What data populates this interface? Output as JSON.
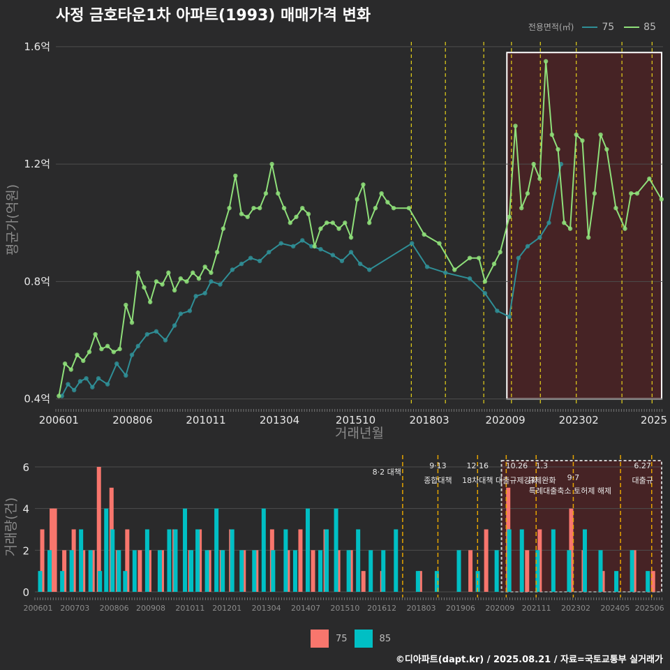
{
  "title": "사정 금호타운1차 아파트(1993) 매매가격 변화",
  "legend_top": {
    "title": "전용면적(㎡)",
    "items": [
      {
        "label": "75",
        "color": "#2f8f97"
      },
      {
        "label": "85",
        "color": "#8fe07a"
      }
    ]
  },
  "legend_bottom": {
    "items": [
      {
        "label": "75",
        "color": "#f8766d"
      },
      {
        "label": "85",
        "color": "#00bfc4"
      }
    ]
  },
  "credit": "©디아파트(dapt.kr) / 2025.08.21 / 자료=국토교통부 실거래가",
  "chart_data": [
    {
      "type": "line",
      "title": "사정 금호타운1차 아파트(1993) 매매가격 변화",
      "xlabel": "거래년월",
      "ylabel": "평균가(억원)",
      "x_tick_labels": [
        "200601",
        "200806",
        "201011",
        "201304",
        "201510",
        "201803",
        "202009",
        "202302",
        "2025"
      ],
      "y_tick_labels": [
        "0.4억",
        "0.8억",
        "1.2억",
        "1.6억"
      ],
      "ylim": [
        0.38,
        1.64
      ],
      "xlim": [
        2005.9,
        2025.85
      ],
      "grid": true,
      "legend_position": "top-right",
      "policy_lines": [
        2017.58,
        2018.7,
        2019.96,
        2020.87,
        2021.82,
        2023.0,
        2024.5,
        2025.49
      ],
      "highlight_range": {
        "x": [
          2020.72,
          2025.85
        ],
        "y": [
          0.4,
          1.58
        ]
      },
      "series": [
        {
          "name": "75",
          "color": "#2f8f97",
          "x": [
            2006.1,
            2006.3,
            2006.5,
            2006.7,
            2006.9,
            2007.1,
            2007.3,
            2007.6,
            2007.9,
            2008.2,
            2008.4,
            2008.6,
            2008.9,
            2009.2,
            2009.5,
            2009.8,
            2010.0,
            2010.3,
            2010.5,
            2010.8,
            2011.0,
            2011.3,
            2011.7,
            2012.0,
            2012.3,
            2012.6,
            2012.9,
            2013.3,
            2013.7,
            2014.0,
            2014.3,
            2014.6,
            2015.0,
            2015.3,
            2015.6,
            2015.9,
            2016.2,
            2017.6,
            2018.1,
            2018.7,
            2019.5,
            2020.0,
            2020.4,
            2020.8,
            2021.1,
            2021.4,
            2021.8,
            2022.1,
            2022.5
          ],
          "y": [
            0.41,
            0.45,
            0.43,
            0.46,
            0.47,
            0.44,
            0.47,
            0.45,
            0.52,
            0.48,
            0.55,
            0.58,
            0.62,
            0.63,
            0.6,
            0.65,
            0.69,
            0.7,
            0.75,
            0.76,
            0.8,
            0.79,
            0.84,
            0.86,
            0.88,
            0.87,
            0.9,
            0.93,
            0.92,
            0.94,
            0.92,
            0.91,
            0.89,
            0.87,
            0.9,
            0.86,
            0.84,
            0.93,
            0.85,
            0.83,
            0.81,
            0.76,
            0.7,
            0.68,
            0.88,
            0.92,
            0.95,
            1.0,
            1.2
          ]
        },
        {
          "name": "85",
          "color": "#8fe07a",
          "x": [
            2006.0,
            2006.2,
            2006.4,
            2006.6,
            2006.8,
            2007.0,
            2007.2,
            2007.4,
            2007.6,
            2007.8,
            2008.0,
            2008.2,
            2008.4,
            2008.6,
            2008.8,
            2009.0,
            2009.2,
            2009.4,
            2009.6,
            2009.8,
            2010.0,
            2010.2,
            2010.4,
            2010.6,
            2010.8,
            2011.0,
            2011.2,
            2011.4,
            2011.6,
            2011.8,
            2012.0,
            2012.2,
            2012.4,
            2012.6,
            2012.8,
            2013.0,
            2013.2,
            2013.4,
            2013.6,
            2013.8,
            2014.0,
            2014.2,
            2014.4,
            2014.6,
            2014.8,
            2015.0,
            2015.2,
            2015.4,
            2015.6,
            2015.8,
            2016.0,
            2016.2,
            2016.4,
            2016.6,
            2016.8,
            2017.0,
            2017.5,
            2018.0,
            2018.5,
            2019.0,
            2019.5,
            2019.8,
            2020.0,
            2020.3,
            2020.5,
            2020.8,
            2021.0,
            2021.2,
            2021.4,
            2021.6,
            2021.8,
            2022.0,
            2022.2,
            2022.4,
            2022.6,
            2022.8,
            2023.0,
            2023.2,
            2023.4,
            2023.6,
            2023.8,
            2024.0,
            2024.3,
            2024.6,
            2024.8,
            2025.0,
            2025.4,
            2025.8
          ],
          "y": [
            0.41,
            0.52,
            0.5,
            0.55,
            0.53,
            0.56,
            0.62,
            0.57,
            0.58,
            0.56,
            0.57,
            0.72,
            0.66,
            0.83,
            0.78,
            0.73,
            0.8,
            0.79,
            0.83,
            0.77,
            0.81,
            0.8,
            0.83,
            0.81,
            0.85,
            0.83,
            0.9,
            0.98,
            1.05,
            1.16,
            1.03,
            1.02,
            1.05,
            1.05,
            1.1,
            1.2,
            1.1,
            1.05,
            1.0,
            1.02,
            1.05,
            1.03,
            0.92,
            0.98,
            1.0,
            1.0,
            0.98,
            1.0,
            0.95,
            1.08,
            1.13,
            1.0,
            1.05,
            1.1,
            1.07,
            1.05,
            1.05,
            0.96,
            0.93,
            0.84,
            0.88,
            0.88,
            0.8,
            0.86,
            0.9,
            1.02,
            1.33,
            1.05,
            1.1,
            1.2,
            1.15,
            1.55,
            1.3,
            1.25,
            1.0,
            0.98,
            1.3,
            1.28,
            0.95,
            1.1,
            1.3,
            1.25,
            1.05,
            0.98,
            1.1,
            1.1,
            1.15,
            1.08
          ]
        }
      ]
    },
    {
      "type": "bar",
      "xlabel": "",
      "ylabel": "거래량(건)",
      "x_tick_labels": [
        "200601",
        "200703",
        "200806",
        "200908",
        "201011",
        "201201",
        "201304",
        "201407",
        "201510",
        "201612",
        "201803",
        "201906",
        "202009",
        "202111",
        "202302",
        "202405",
        "202506"
      ],
      "y_tick_labels": [
        "0",
        "2",
        "4",
        "6"
      ],
      "ylim": [
        0,
        6.3
      ],
      "xlim": [
        2005.9,
        2025.85
      ],
      "policy_labels": [
        {
          "date": "",
          "text": "8·2 대책"
        },
        {
          "date": "9·13",
          "text": "종합대책"
        },
        {
          "date": "12·16",
          "text": "18차대책"
        },
        {
          "date": "10.26",
          "text": "대출규제강화"
        },
        {
          "date": "1.3",
          "text": "규제완화"
        },
        {
          "date": "",
          "text": "9·7"
        },
        {
          "date": "",
          "text": "특례대출축소 토허제 해제"
        },
        {
          "date": "6.27",
          "text": "대출규"
        }
      ],
      "series": [
        {
          "name": "75",
          "color": "#f8766d",
          "x": [
            2006.2,
            2006.5,
            2006.6,
            2006.9,
            2007.2,
            2007.5,
            2007.8,
            2008.0,
            2008.4,
            2008.6,
            2008.9,
            2009.3,
            2009.6,
            2010.0,
            2010.4,
            2010.9,
            2011.2,
            2011.5,
            2011.9,
            2012.2,
            2012.6,
            2013.0,
            2013.5,
            2014.0,
            2014.4,
            2014.8,
            2015.2,
            2015.6,
            2016.0,
            2016.4,
            2017.0,
            2018.2,
            2019.8,
            2020.3,
            2021.0,
            2021.6,
            2022.0,
            2023.0,
            2023.4,
            2024.0,
            2025.0,
            2025.6
          ],
          "y": [
            3,
            4,
            4,
            2,
            3,
            2,
            2,
            6,
            5,
            2,
            3,
            2,
            2,
            2,
            3,
            2,
            3,
            2,
            2,
            3,
            2,
            2,
            3,
            2,
            3,
            2,
            3,
            2,
            2,
            1,
            1,
            1,
            2,
            3,
            5,
            2,
            3,
            4,
            2,
            1,
            2,
            1
          ]
        },
        {
          "name": "85",
          "color": "#00bfc4",
          "x": [
            2006.0,
            2006.3,
            2006.7,
            2007.0,
            2007.3,
            2007.6,
            2007.9,
            2008.1,
            2008.3,
            2008.5,
            2008.7,
            2009.0,
            2009.4,
            2009.8,
            2010.1,
            2010.3,
            2010.6,
            2010.8,
            2011.0,
            2011.3,
            2011.6,
            2011.8,
            2012.1,
            2012.4,
            2012.8,
            2013.1,
            2013.4,
            2013.8,
            2014.1,
            2014.5,
            2014.9,
            2015.1,
            2015.4,
            2015.8,
            2016.1,
            2016.5,
            2016.9,
            2017.3,
            2018.0,
            2018.6,
            2019.3,
            2019.9,
            2020.5,
            2020.9,
            2021.3,
            2021.8,
            2022.3,
            2022.8,
            2023.3,
            2023.8,
            2024.3,
            2024.8,
            2025.3
          ],
          "y": [
            1,
            2,
            1,
            2,
            3,
            2,
            1,
            4,
            3,
            2,
            1,
            2,
            3,
            2,
            3,
            3,
            4,
            2,
            3,
            2,
            4,
            2,
            3,
            2,
            2,
            4,
            2,
            3,
            2,
            4,
            2,
            3,
            4,
            2,
            3,
            2,
            2,
            3,
            1,
            1,
            2,
            1,
            2,
            3,
            3,
            2,
            3,
            2,
            3,
            2,
            1,
            2,
            1
          ]
        }
      ]
    }
  ]
}
